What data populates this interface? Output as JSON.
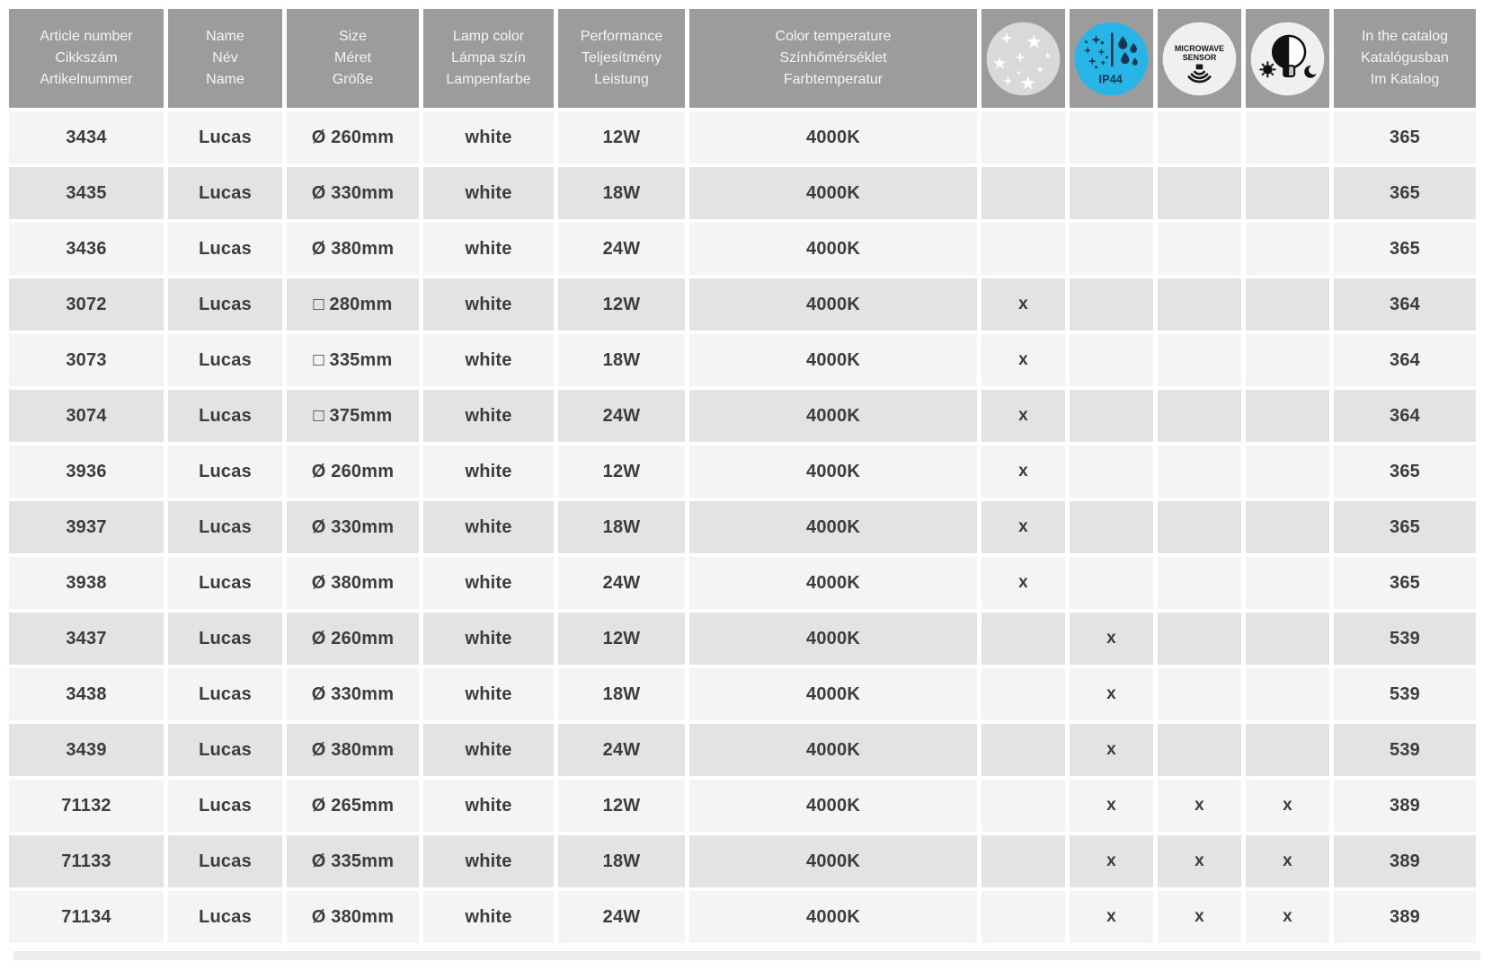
{
  "table": {
    "columns": [
      {
        "id": "article",
        "lines": [
          "Article number",
          "Cikkszám",
          "Artikelnummer"
        ]
      },
      {
        "id": "name",
        "lines": [
          "Name",
          "Név",
          "Name"
        ]
      },
      {
        "id": "size",
        "lines": [
          "Size",
          "Méret",
          "Größe"
        ]
      },
      {
        "id": "lamp_color",
        "lines": [
          "Lamp color",
          "Lámpa szín",
          "Lampenfarbe"
        ]
      },
      {
        "id": "performance",
        "lines": [
          "Performance",
          "Teljesítmény",
          "Leistung"
        ]
      },
      {
        "id": "color_temp",
        "lines": [
          "Color temperature",
          "Színhőmérséklet",
          "Farbtemperatur"
        ]
      },
      {
        "id": "star_effect",
        "icon": "star-effect-icon"
      },
      {
        "id": "ip44",
        "icon": "ip44-icon",
        "icon_text": "IP44"
      },
      {
        "id": "microwave",
        "icon": "microwave-sensor-icon",
        "icon_text_lines": [
          "MICROWAVE",
          "SENSOR"
        ]
      },
      {
        "id": "day_night",
        "icon": "day-night-sensor-icon"
      },
      {
        "id": "catalog",
        "lines": [
          "In the catalog",
          "Katalógusban",
          "Im Katalog"
        ]
      }
    ],
    "rows": [
      {
        "article": "3434",
        "name": "Lucas",
        "size": "Ø 260mm",
        "lamp_color": "white",
        "performance": "12W",
        "color_temp": "4000K",
        "star_effect": "",
        "ip44": "",
        "microwave": "",
        "day_night": "",
        "catalog": "365"
      },
      {
        "article": "3435",
        "name": "Lucas",
        "size": "Ø 330mm",
        "lamp_color": "white",
        "performance": "18W",
        "color_temp": "4000K",
        "star_effect": "",
        "ip44": "",
        "microwave": "",
        "day_night": "",
        "catalog": "365"
      },
      {
        "article": "3436",
        "name": "Lucas",
        "size": "Ø 380mm",
        "lamp_color": "white",
        "performance": "24W",
        "color_temp": "4000K",
        "star_effect": "",
        "ip44": "",
        "microwave": "",
        "day_night": "",
        "catalog": "365"
      },
      {
        "article": "3072",
        "name": "Lucas",
        "size": "□ 280mm",
        "lamp_color": "white",
        "performance": "12W",
        "color_temp": "4000K",
        "star_effect": "x",
        "ip44": "",
        "microwave": "",
        "day_night": "",
        "catalog": "364"
      },
      {
        "article": "3073",
        "name": "Lucas",
        "size": "□ 335mm",
        "lamp_color": "white",
        "performance": "18W",
        "color_temp": "4000K",
        "star_effect": "x",
        "ip44": "",
        "microwave": "",
        "day_night": "",
        "catalog": "364"
      },
      {
        "article": "3074",
        "name": "Lucas",
        "size": "□ 375mm",
        "lamp_color": "white",
        "performance": "24W",
        "color_temp": "4000K",
        "star_effect": "x",
        "ip44": "",
        "microwave": "",
        "day_night": "",
        "catalog": "364"
      },
      {
        "article": "3936",
        "name": "Lucas",
        "size": "Ø 260mm",
        "lamp_color": "white",
        "performance": "12W",
        "color_temp": "4000K",
        "star_effect": "x",
        "ip44": "",
        "microwave": "",
        "day_night": "",
        "catalog": "365"
      },
      {
        "article": "3937",
        "name": "Lucas",
        "size": "Ø 330mm",
        "lamp_color": "white",
        "performance": "18W",
        "color_temp": "4000K",
        "star_effect": "x",
        "ip44": "",
        "microwave": "",
        "day_night": "",
        "catalog": "365"
      },
      {
        "article": "3938",
        "name": "Lucas",
        "size": "Ø 380mm",
        "lamp_color": "white",
        "performance": "24W",
        "color_temp": "4000K",
        "star_effect": "x",
        "ip44": "",
        "microwave": "",
        "day_night": "",
        "catalog": "365"
      },
      {
        "article": "3437",
        "name": "Lucas",
        "size": "Ø 260mm",
        "lamp_color": "white",
        "performance": "12W",
        "color_temp": "4000K",
        "star_effect": "",
        "ip44": "x",
        "microwave": "",
        "day_night": "",
        "catalog": "539"
      },
      {
        "article": "3438",
        "name": "Lucas",
        "size": "Ø 330mm",
        "lamp_color": "white",
        "performance": "18W",
        "color_temp": "4000K",
        "star_effect": "",
        "ip44": "x",
        "microwave": "",
        "day_night": "",
        "catalog": "539"
      },
      {
        "article": "3439",
        "name": "Lucas",
        "size": "Ø 380mm",
        "lamp_color": "white",
        "performance": "24W",
        "color_temp": "4000K",
        "star_effect": "",
        "ip44": "x",
        "microwave": "",
        "day_night": "",
        "catalog": "539"
      },
      {
        "article": "71132",
        "name": "Lucas",
        "size": "Ø 265mm",
        "lamp_color": "white",
        "performance": "12W",
        "color_temp": "4000K",
        "star_effect": "",
        "ip44": "x",
        "microwave": "x",
        "day_night": "x",
        "catalog": "389"
      },
      {
        "article": "71133",
        "name": "Lucas",
        "size": "Ø 335mm",
        "lamp_color": "white",
        "performance": "18W",
        "color_temp": "4000K",
        "star_effect": "",
        "ip44": "x",
        "microwave": "x",
        "day_night": "x",
        "catalog": "389"
      },
      {
        "article": "71134",
        "name": "Lucas",
        "size": "Ø 380mm",
        "lamp_color": "white",
        "performance": "24W",
        "color_temp": "4000K",
        "star_effect": "",
        "ip44": "x",
        "microwave": "x",
        "day_night": "x",
        "catalog": "389"
      }
    ]
  },
  "colors": {
    "header_bg": "#9c9c9c",
    "header_text": "#f4f4f4",
    "row_light": "#f4f4f4",
    "row_dark": "#e3e3e3",
    "body_text": "#3c3c3c",
    "star_circle_bg": "#d9d9d9",
    "icon_circle_bg": "#f0f0f0",
    "ip44_blue": "#29b4e8",
    "ip44_glyph_navy": "#16384d",
    "icon_glyph_black": "#1b1b1b"
  }
}
